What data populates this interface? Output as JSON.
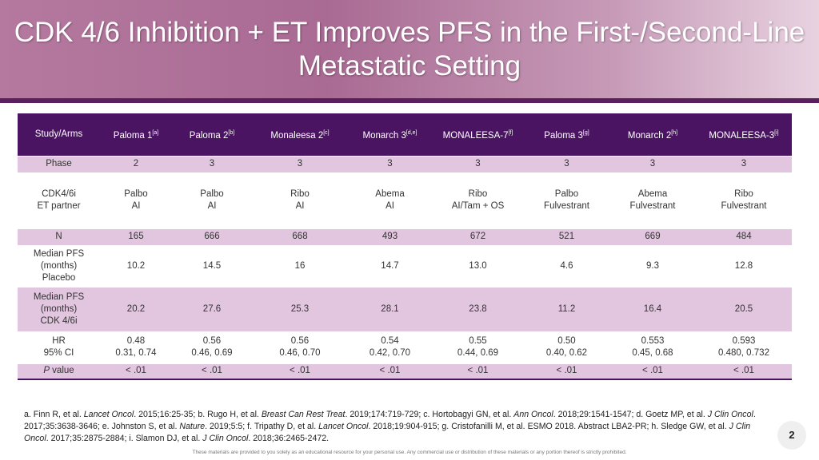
{
  "title": "CDK 4/6 Inhibition + ET Improves PFS in the First-/Second-Line Metastatic Setting",
  "header": [
    {
      "label": "Study/Arms",
      "sup": ""
    },
    {
      "label": "Paloma 1",
      "sup": "[a]"
    },
    {
      "label": "Paloma 2",
      "sup": "[b]"
    },
    {
      "label": "Monaleesa 2",
      "sup": "[c]"
    },
    {
      "label": "Monarch 3",
      "sup": "[d,e]"
    },
    {
      "label": "MONALEESA-7",
      "sup": "[f]"
    },
    {
      "label": "Paloma 3",
      "sup": "[g]"
    },
    {
      "label": "Monarch 2",
      "sup": "[h]"
    },
    {
      "label": "MONALEESA-3",
      "sup": "[i]"
    }
  ],
  "rows": [
    {
      "label": [
        "Phase"
      ],
      "cells": [
        [
          "2"
        ],
        [
          "3"
        ],
        [
          "3"
        ],
        [
          "3"
        ],
        [
          "3"
        ],
        [
          "3"
        ],
        [
          "3"
        ],
        [
          "3"
        ]
      ]
    },
    {
      "label": [
        "CDK4/6i",
        "ET partner"
      ],
      "cells": [
        [
          "Palbo",
          "AI"
        ],
        [
          "Palbo",
          "AI"
        ],
        [
          "Ribo",
          "AI"
        ],
        [
          "Abema",
          "AI"
        ],
        [
          "Ribo",
          "AI/Tam + OS"
        ],
        [
          "Palbo",
          "Fulvestrant"
        ],
        [
          "Abema",
          "Fulvestrant"
        ],
        [
          "Ribo",
          "Fulvestrant"
        ]
      ]
    },
    {
      "label": [
        "N"
      ],
      "cells": [
        [
          "165"
        ],
        [
          "666"
        ],
        [
          "668"
        ],
        [
          "493"
        ],
        [
          "672"
        ],
        [
          "521"
        ],
        [
          "669"
        ],
        [
          "484"
        ]
      ]
    },
    {
      "label": [
        "Median PFS",
        "(months)",
        "Placebo"
      ],
      "cells": [
        [
          "10.2"
        ],
        [
          "14.5"
        ],
        [
          "16"
        ],
        [
          "14.7"
        ],
        [
          "13.0"
        ],
        [
          "4.6"
        ],
        [
          "9.3"
        ],
        [
          "12.8"
        ]
      ]
    },
    {
      "label": [
        "Median PFS",
        "(months)",
        "CDK 4/6i"
      ],
      "cells": [
        [
          "20.2"
        ],
        [
          "27.6"
        ],
        [
          "25.3"
        ],
        [
          "28.1"
        ],
        [
          "23.8"
        ],
        [
          "11.2"
        ],
        [
          "16.4"
        ],
        [
          "20.5"
        ]
      ]
    },
    {
      "label": [
        "HR",
        "95% CI"
      ],
      "cells": [
        [
          "0.48",
          "0.31, 0.74"
        ],
        [
          "0.56",
          "0.46, 0.69"
        ],
        [
          "0.56",
          "0.46, 0.70"
        ],
        [
          "0.54",
          "0.42, 0.70"
        ],
        [
          "0.55",
          "0.44, 0.69"
        ],
        [
          "0.50",
          "0.40, 0.62"
        ],
        [
          "0.553",
          "0.45, 0.68"
        ],
        [
          "0.593",
          "0.480, 0.732"
        ]
      ]
    },
    {
      "label": [
        "P value"
      ],
      "cells": [
        [
          "< .01"
        ],
        [
          "< .01"
        ],
        [
          "< .01"
        ],
        [
          "< .01"
        ],
        [
          "< .01"
        ],
        [
          "< .01"
        ],
        [
          "< .01"
        ],
        [
          "< .01"
        ]
      ]
    }
  ],
  "footnotes": [
    {
      "t": "a. Finn R, et al. ",
      "i": false
    },
    {
      "t": "Lancet Oncol",
      "i": true
    },
    {
      "t": ". 2015;16:25-35;  b. Rugo H, et al. ",
      "i": false
    },
    {
      "t": "Breast Can Rest Treat",
      "i": true
    },
    {
      "t": ". 2019;174:719-729;  c. Hortobagyi GN, et al. ",
      "i": false
    },
    {
      "t": "Ann Oncol",
      "i": true
    },
    {
      "t": ". 2018;29:1541-1547;  d. Goetz MP, et al. ",
      "i": false
    },
    {
      "t": "J Clin Oncol",
      "i": true
    },
    {
      "t": ". 2017;35:3638-3646;  e. Johnston S, et al. ",
      "i": false
    },
    {
      "t": "Nature",
      "i": true
    },
    {
      "t": ". 2019;5:5;  f. Tripathy D, et al. ",
      "i": false
    },
    {
      "t": "Lancet Oncol",
      "i": true
    },
    {
      "t": ". 2018;19:904-915;  g. Cristofanilli M, et al. ESMO 2018. Abstract LBA2-PR; h. Sledge GW, et al. ",
      "i": false
    },
    {
      "t": "J Clin Oncol",
      "i": true
    },
    {
      "t": ". 2017;35:2875-2884;  i. Slamon DJ, et al. ",
      "i": false
    },
    {
      "t": "J Clin Oncol",
      "i": true
    },
    {
      "t": ". 2018;36:2465-2472.",
      "i": false
    }
  ],
  "page_number": "2",
  "disclaimer": "These materials are provided to you solely as an educational resource for your personal use. Any commercial use or distribution of these materials or any portion thereof is strictly prohibited."
}
